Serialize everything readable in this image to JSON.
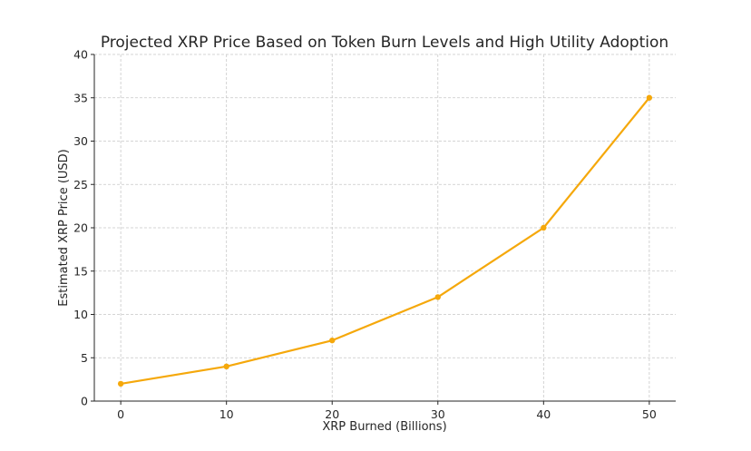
{
  "chart_data": {
    "type": "line",
    "title": "Projected XRP Price Based on Token Burn Levels and High Utility Adoption",
    "xlabel": "XRP Burned (Billions)",
    "ylabel": "Estimated XRP Price (USD)",
    "xlim": [
      -2.5,
      52.5
    ],
    "ylim": [
      0,
      40
    ],
    "xticks": [
      0,
      10,
      20,
      30,
      40,
      50
    ],
    "yticks": [
      0,
      5,
      10,
      15,
      20,
      25,
      30,
      35,
      40
    ],
    "grid": true,
    "series": [
      {
        "x": [
          0,
          10,
          20,
          30,
          40,
          50
        ],
        "y": [
          2,
          4,
          7,
          12,
          20,
          35
        ],
        "color": "#f5a80b",
        "marker": "circle"
      }
    ]
  }
}
